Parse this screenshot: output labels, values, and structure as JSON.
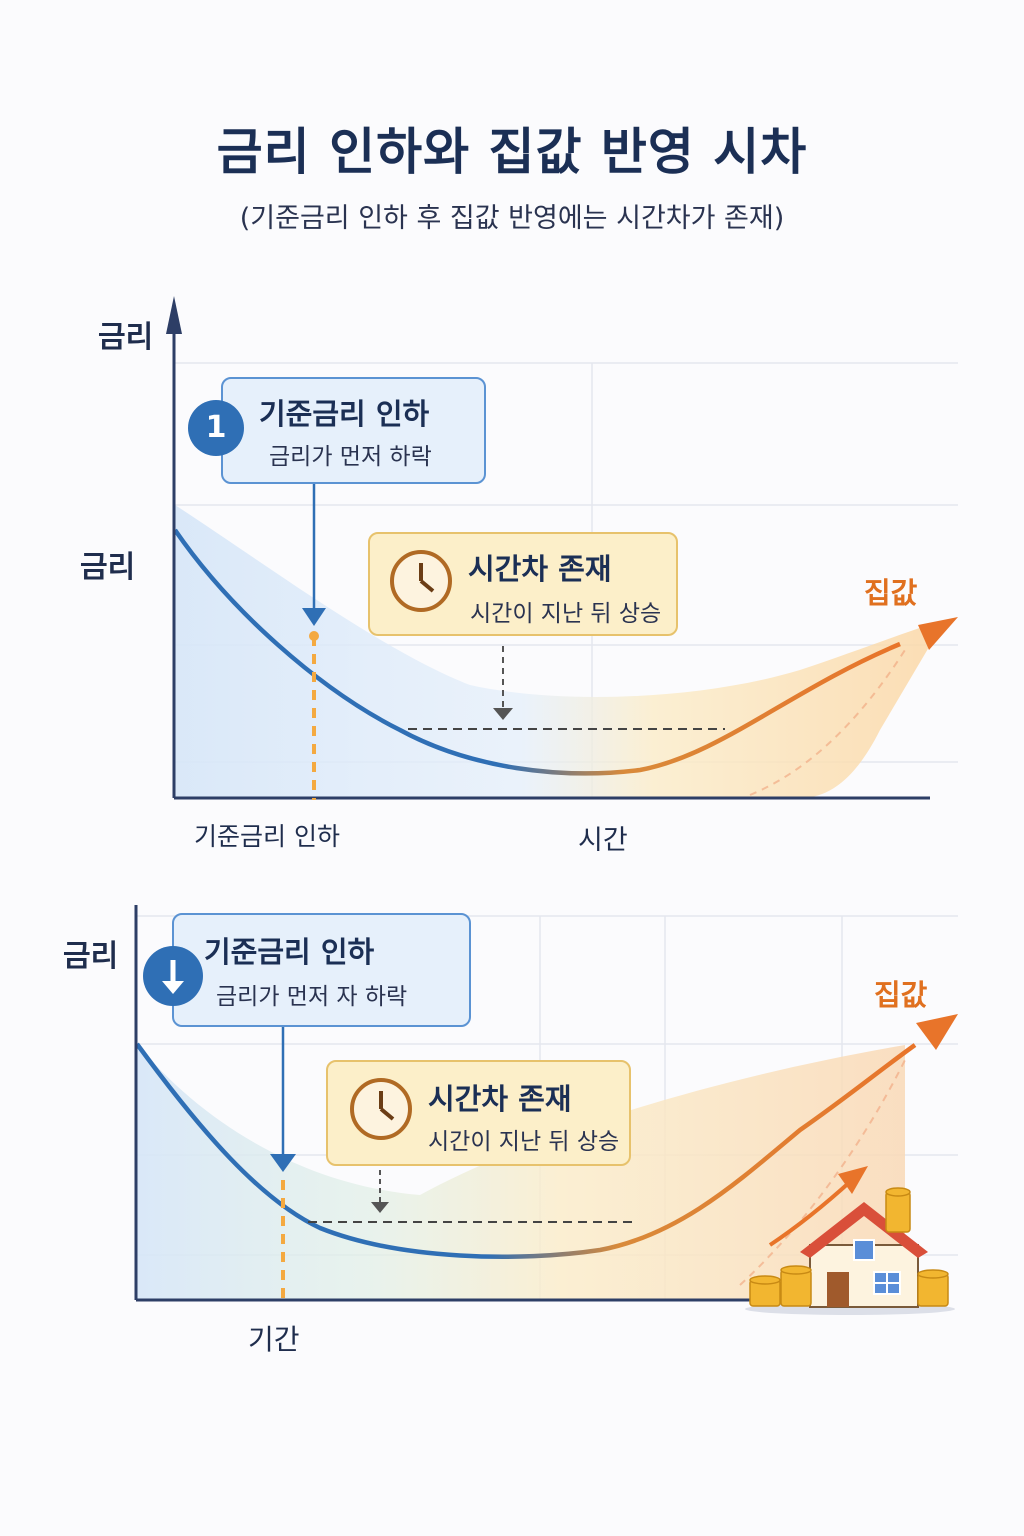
{
  "title": "금리 인하와 집값 반영 시차",
  "subtitle": "(기준금리 인하 후 집값 반영에는 시간차가 존재)",
  "chart1": {
    "y_axis_label": "금리",
    "rate_label": "금리",
    "box_rate": {
      "badge": "1",
      "head": "기준금리 인하",
      "sub": "금리가 먼저 하락"
    },
    "box_lag": {
      "head": "시간차 존재",
      "sub": "시간이 지난 뒤 상승"
    },
    "house_label": "집값",
    "x_label_cut": "기준금리 인하",
    "x_label_time": "시간"
  },
  "chart2": {
    "y_axis_label": "금리",
    "box_rate": {
      "head": "기준금리 인하",
      "sub": "금리가 먼저 자 하락"
    },
    "box_lag": {
      "head": "시간차 존재",
      "sub": "시간이 지난 뒤 상승"
    },
    "house_label": "집값",
    "x_label": "기간"
  },
  "colors": {
    "rate_line": "#2f6fb5",
    "price_line": "#e8742a",
    "rate_fill": "#dce9f8",
    "price_fill": "#fbe2b8",
    "axis": "#2d3e66"
  },
  "icons": [
    "down-arrow-icon",
    "clock-icon",
    "house-icon",
    "coin-stack-icon"
  ]
}
